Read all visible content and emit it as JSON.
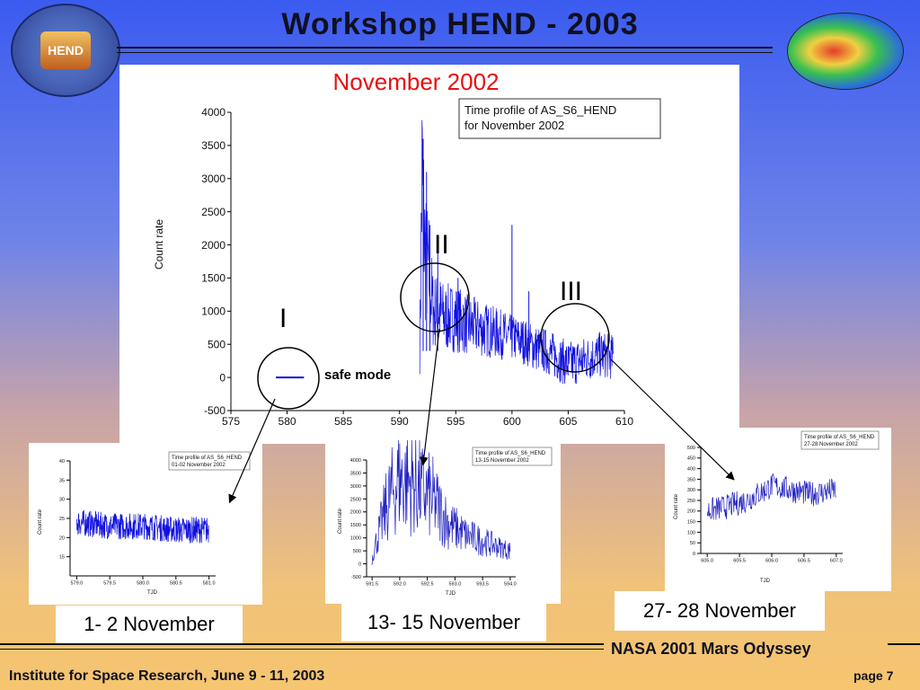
{
  "slide": {
    "title": "Workshop   HEND - 2003",
    "footer_left": "Institute for Space Research, June 9 - 11, 2003",
    "footer_right": "page 7",
    "nasa_label": "NASA 2001 Mars Odyssey",
    "logo_text": "HEND"
  },
  "main": {
    "heading": "November 2002",
    "legend_lines": [
      "Time profile of AS_S6_HEND",
      "for November 2002"
    ],
    "annotation_I": "I",
    "annotation_II": "II",
    "annotation_III": "III",
    "safe_mode": "safe mode"
  },
  "captions": {
    "c1": "1- 2 November",
    "c2": "13- 15 November",
    "c3": "27- 28 November"
  },
  "insets": {
    "i1": {
      "legend": [
        "Time profile of AS_S6_HEND",
        "01-02 November 2002"
      ],
      "xlabel": "TJD",
      "ylabel": "Count rate"
    },
    "i2": {
      "legend": [
        "Time profile of AS_S6_HEND",
        "13-15 November 2002"
      ],
      "xlabel": "TJD",
      "ylabel": "Count rate"
    },
    "i3": {
      "legend": [
        "Time profile of AS_S6_HEND",
        "27-28 November 2002"
      ],
      "xlabel": "TJD",
      "ylabel": "Count rate"
    }
  },
  "chart_data": [
    {
      "type": "line",
      "title": "Time profile of AS_S6_HEND for November 2002",
      "xlabel": "",
      "ylabel": "Count rate",
      "xlim": [
        575,
        610
      ],
      "ylim": [
        -500,
        4000
      ],
      "xticks": [
        575,
        580,
        585,
        590,
        595,
        600,
        605,
        610
      ],
      "yticks": [
        -500,
        0,
        500,
        1000,
        1500,
        2000,
        2500,
        3000,
        3500,
        4000
      ],
      "series": [
        {
          "x": [
            579.0,
            580.0,
            581.0
          ],
          "y": [
            20,
            25,
            22
          ]
        },
        {
          "x": [
            591.8,
            592.0,
            592.3,
            592.6,
            593.0,
            593.5,
            594.0,
            595.0,
            596.0,
            597.0,
            598.0,
            599.0,
            600.0,
            601.0,
            602.0,
            603.0,
            604.0,
            605.0,
            606.0,
            607.0,
            608.0,
            609.0
          ],
          "y": [
            400,
            3000,
            1800,
            1600,
            1000,
            1000,
            900,
            900,
            800,
            750,
            700,
            650,
            600,
            550,
            450,
            400,
            300,
            200,
            250,
            300,
            350,
            300
          ]
        }
      ],
      "color": "#1010e0"
    },
    {
      "type": "line",
      "title": "Time profile of AS_S6_HEND 01-02 November 2002",
      "xlabel": "TJD",
      "ylabel": "Count rate",
      "xlim": [
        578.9,
        581.1
      ],
      "ylim": [
        10,
        40
      ],
      "xticks": [
        579.0,
        579.5,
        580.0,
        580.5,
        581.0
      ],
      "yticks": [
        15,
        20,
        25,
        30,
        35,
        40
      ],
      "series": [
        {
          "x": [
            579.0,
            579.5,
            580.0,
            580.5,
            581.0
          ],
          "y": [
            24,
            23,
            23,
            22,
            22
          ]
        }
      ]
    },
    {
      "type": "line",
      "title": "Time profile of AS_S6_HEND 13-15 November 2002",
      "xlabel": "TJD",
      "ylabel": "Count rate",
      "xlim": [
        591.4,
        594.1
      ],
      "ylim": [
        -500,
        4000
      ],
      "xticks": [
        591.5,
        592.0,
        592.5,
        593.0,
        593.5,
        594.0
      ],
      "yticks": [
        -500,
        0,
        500,
        1000,
        1500,
        2000,
        2500,
        3000,
        3500,
        4000
      ],
      "series": [
        {
          "x": [
            591.5,
            591.8,
            592.0,
            592.3,
            592.6,
            592.9,
            593.2,
            593.6,
            594.0
          ],
          "y": [
            300,
            2500,
            3300,
            3000,
            2500,
            1500,
            1100,
            800,
            500
          ]
        }
      ]
    },
    {
      "type": "line",
      "title": "Time profile of AS_S6_HEND 27-28 November 2002",
      "xlabel": "TJD",
      "ylabel": "Count rate",
      "xlim": [
        604.9,
        607.1
      ],
      "ylim": [
        0,
        500
      ],
      "xticks": [
        605.0,
        605.5,
        606.0,
        606.5,
        607.0
      ],
      "yticks": [
        0,
        50,
        100,
        150,
        200,
        250,
        300,
        350,
        400,
        450,
        500
      ],
      "series": [
        {
          "x": [
            605.0,
            605.3,
            605.6,
            605.9,
            606.0,
            606.3,
            606.6,
            607.0
          ],
          "y": [
            200,
            220,
            250,
            300,
            320,
            300,
            280,
            300
          ]
        }
      ]
    }
  ]
}
